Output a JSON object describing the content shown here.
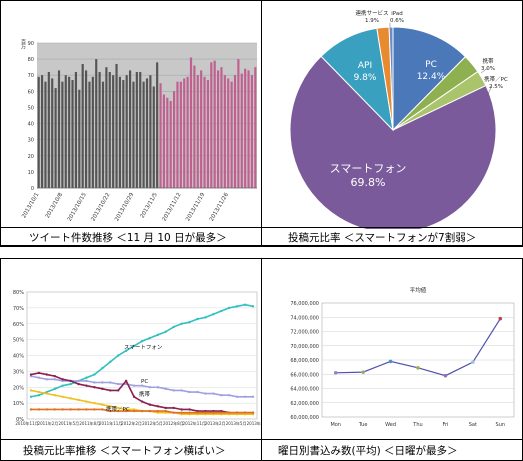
{
  "panels": [
    {
      "caption": "ツイート件数推移 ＜11 月 10 日が最多＞"
    },
    {
      "caption": "投稿元比率 ＜スマートフォンが7割弱＞"
    },
    {
      "caption": "投稿元比率推移 ＜スマートフォン横ばい＞"
    },
    {
      "caption": "曜日別書込み数(平均) ＜日曜が最多＞"
    }
  ],
  "chart_data": [
    {
      "type": "bar",
      "ylabel": "百万",
      "ylim": [
        0,
        90
      ],
      "yticks": [
        "0",
        "10",
        "20",
        "30",
        "40",
        "50",
        "60",
        "70",
        "80",
        "90"
      ],
      "xtick_labels": [
        "2013/10/1",
        "2013/10/8",
        "2013/10/15",
        "2013/10/22",
        "2013/10/29",
        "2013/11/5",
        "2013/11/12",
        "2013/11/19",
        "2013/11/26"
      ],
      "grid": true,
      "series": [
        {
          "color": "#555555",
          "values": [
            69,
            70,
            66,
            72,
            68,
            62,
            73,
            66,
            70,
            69,
            67,
            72,
            61,
            77,
            73,
            66,
            69,
            80,
            72,
            66,
            75,
            72,
            70,
            77,
            69,
            67,
            70,
            73,
            66,
            72,
            72,
            66,
            68,
            70,
            63,
            78
          ]
        },
        {
          "color": "#c06090",
          "values": [
            65,
            58,
            56,
            54,
            60,
            66,
            66,
            68,
            69,
            81,
            76,
            70,
            73,
            69,
            67,
            78,
            79,
            73,
            75,
            70,
            68,
            66,
            70,
            80,
            71,
            74,
            73,
            70,
            75
          ]
        }
      ]
    },
    {
      "type": "pie",
      "slices": [
        {
          "label": "PC",
          "value": "12.4%",
          "color": "#4a78b8"
        },
        {
          "label": "携帯",
          "value": "3.0%",
          "color": "#8fb050"
        },
        {
          "label": "携帯／PC",
          "value": "2.5%",
          "color": "#a9c46a"
        },
        {
          "label": "スマートフォン",
          "value": "69.8%",
          "color": "#7a5a9a"
        },
        {
          "label": "API",
          "value": "9.8%",
          "color": "#3aa0c0"
        },
        {
          "label": "連携サービス",
          "value": "1.9%",
          "color": "#e88a30"
        },
        {
          "label": "iPad",
          "value": "0.6%",
          "color": "#6a8ac8"
        }
      ]
    },
    {
      "type": "line",
      "yticks": [
        "0%",
        "10%",
        "20%",
        "30%",
        "40%",
        "50%",
        "60%",
        "70%",
        "80%"
      ],
      "ylim": [
        0,
        80
      ],
      "xtick_labels": [
        "2010年11月",
        "2011年2月",
        "2011年5月",
        "2011年8月",
        "2011年11月",
        "2012年2月",
        "2012年5月",
        "2012年8月",
        "2012年11月",
        "2013年2月",
        "2013年5月",
        "2013年7月"
      ],
      "annotations": [
        "スマートフォン",
        "PC",
        "携帯",
        "携帯／PC"
      ],
      "series": [
        {
          "name": "スマートフォン",
          "color": "#30c0c0",
          "values": [
            14,
            15,
            17,
            19,
            21,
            22,
            24,
            26,
            28,
            32,
            36,
            40,
            43,
            46,
            49,
            51,
            53,
            55,
            58,
            60,
            61,
            63,
            64,
            66,
            68,
            70,
            71,
            72,
            71
          ]
        },
        {
          "name": "PC",
          "color": "#a0a0e0",
          "values": [
            27,
            26,
            25,
            25,
            24,
            24,
            24,
            24,
            23,
            23,
            23,
            22,
            22,
            21,
            21,
            20,
            20,
            19,
            18,
            18,
            17,
            17,
            16,
            16,
            15,
            15,
            14,
            14,
            14
          ]
        },
        {
          "name": "携帯",
          "color": "#8a2050",
          "values": [
            28,
            29,
            28,
            27,
            25,
            24,
            22,
            21,
            20,
            19,
            18,
            18,
            24,
            14,
            11,
            9,
            8,
            7,
            7,
            6,
            6,
            5,
            5,
            5,
            5,
            4,
            4,
            4,
            4
          ]
        },
        {
          "name": "携帯／PC",
          "color": "#f0c020",
          "values": [
            18,
            17,
            16,
            15,
            14,
            13,
            12,
            11,
            10,
            9,
            8,
            7,
            6,
            6,
            5,
            5,
            4,
            4,
            4,
            3,
            3,
            3,
            3,
            3,
            3,
            3,
            3,
            3,
            3
          ]
        },
        {
          "color": "#e07020",
          "values": [
            6,
            6,
            6,
            6,
            6,
            6,
            6,
            6,
            6,
            6,
            5,
            5,
            5,
            5,
            5,
            5,
            5,
            5,
            4,
            4,
            4,
            4,
            4,
            4,
            4,
            4,
            4,
            4,
            4
          ]
        }
      ]
    },
    {
      "type": "line",
      "title": "平均値",
      "categories": [
        "Mon",
        "Tue",
        "Wed",
        "Thu",
        "Fri",
        "Sat",
        "Sun"
      ],
      "values": [
        66200000,
        66300000,
        67800000,
        66900000,
        65800000,
        67700000,
        73800000
      ],
      "ylim": [
        60000000,
        76000000
      ],
      "yticks": [
        "60,000,000",
        "62,000,000",
        "64,000,000",
        "66,000,000",
        "68,000,000",
        "70,000,000",
        "72,000,000",
        "74,000,000",
        "76,000,000"
      ],
      "line_color": "#5050b0",
      "marker_colors": [
        "#a080c0",
        "#90b060",
        "#5090c0",
        "#a0b050",
        "#9070b0",
        "#a0c0e0",
        "#c04050"
      ]
    }
  ]
}
